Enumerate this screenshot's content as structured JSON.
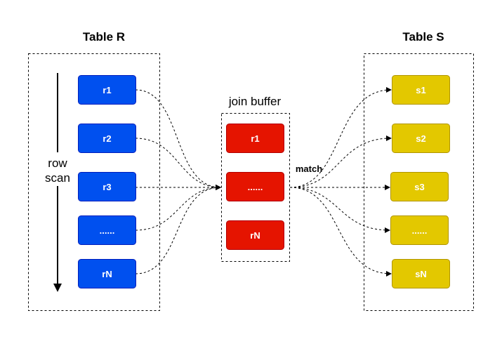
{
  "table_r": {
    "title": "Table R",
    "rows": [
      "r1",
      "r2",
      "r3",
      "......",
      "rN"
    ],
    "color": "#0050ef",
    "stroke": "#001dbc"
  },
  "scan": {
    "line1": "row",
    "line2": "scan"
  },
  "buffer": {
    "title": "join buffer",
    "rows": [
      "r1",
      "......",
      "rN"
    ],
    "color": "#e51400",
    "stroke": "#b20000"
  },
  "match_label": "match",
  "table_s": {
    "title": "Table S",
    "rows": [
      "s1",
      "s2",
      "s3",
      "......",
      "sN"
    ],
    "color": "#e3c800",
    "stroke": "#b09500"
  }
}
